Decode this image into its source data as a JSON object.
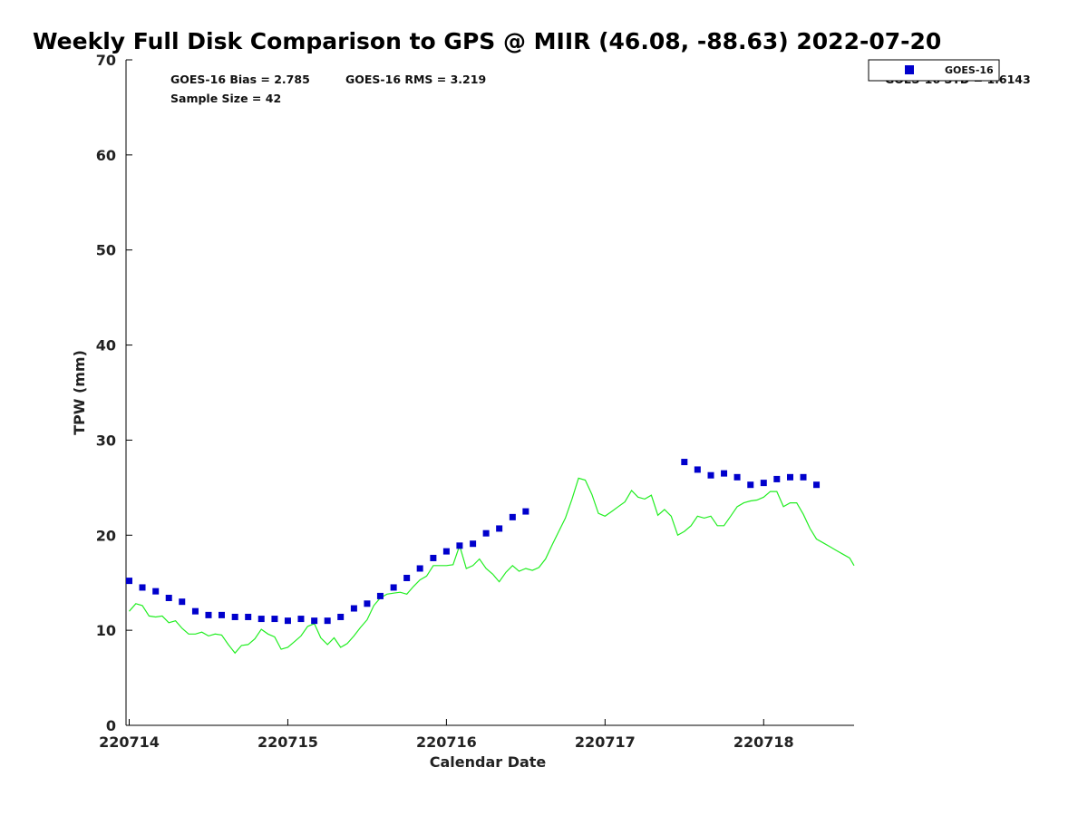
{
  "chart_data": {
    "type": "scatter",
    "title": "Weekly Full Disk Comparison to GPS @ MIIR (46.08, -88.63) 2022-07-20",
    "xlabel": "Calendar Date",
    "ylabel": "TPW (mm)",
    "xlim": [
      -0.02,
      4.57
    ],
    "ylim": [
      0,
      70
    ],
    "yticks": [
      0,
      10,
      20,
      30,
      40,
      50,
      60,
      70
    ],
    "xticks": [
      0,
      1,
      2,
      3,
      4
    ],
    "xtick_labels": [
      "220714",
      "220715",
      "220716",
      "220717",
      "220718"
    ],
    "stats": {
      "bias": "GOES-16 Bias = 2.785",
      "rms": "GOES-16 RMS = 3.219",
      "sample_size": "Sample Size = 42",
      "std": "GOES-16 STD = 1.6143"
    },
    "legend": {
      "position": "top-right",
      "label": "GOES-16"
    },
    "series": [
      {
        "name": "GOES-16",
        "kind": "scatter",
        "color": "#0000cc",
        "x": [
          0.0,
          0.083,
          0.167,
          0.25,
          0.333,
          0.417,
          0.5,
          0.583,
          0.667,
          0.75,
          0.833,
          0.917,
          1.0,
          1.083,
          1.167,
          1.25,
          1.333,
          1.417,
          1.5,
          1.583,
          1.667,
          1.75,
          1.833,
          1.917,
          2.0,
          2.083,
          2.167,
          2.25,
          2.333,
          2.417,
          2.5,
          3.5,
          3.583,
          3.667,
          3.75,
          3.833,
          3.917,
          4.0,
          4.083,
          4.167,
          4.25,
          4.333
        ],
        "y": [
          15.2,
          14.5,
          14.1,
          13.4,
          13.0,
          12.0,
          11.6,
          11.6,
          11.4,
          11.4,
          11.2,
          11.2,
          11.0,
          11.2,
          11.0,
          11.0,
          11.4,
          12.3,
          12.8,
          13.6,
          14.5,
          15.5,
          16.5,
          17.6,
          18.3,
          18.9,
          19.1,
          20.2,
          20.7,
          21.9,
          22.5,
          27.7,
          26.9,
          26.3,
          26.5,
          26.1,
          25.3,
          25.5,
          25.9,
          26.1,
          26.1,
          25.3
        ]
      },
      {
        "name": "GPS",
        "kind": "line",
        "color": "#22ee22",
        "x": [
          0.0,
          0.042,
          0.083,
          0.125,
          0.167,
          0.208,
          0.25,
          0.292,
          0.333,
          0.375,
          0.417,
          0.458,
          0.5,
          0.542,
          0.583,
          0.625,
          0.667,
          0.708,
          0.75,
          0.792,
          0.833,
          0.875,
          0.917,
          0.958,
          1.0,
          1.042,
          1.083,
          1.125,
          1.167,
          1.208,
          1.25,
          1.292,
          1.333,
          1.375,
          1.417,
          1.458,
          1.5,
          1.542,
          1.583,
          1.625,
          1.667,
          1.708,
          1.75,
          1.792,
          1.833,
          1.875,
          1.917,
          1.958,
          2.0,
          2.042,
          2.083,
          2.125,
          2.167,
          2.208,
          2.25,
          2.292,
          2.333,
          2.375,
          2.417,
          2.458,
          2.5,
          2.542,
          2.583,
          2.625,
          2.667,
          2.708,
          2.75,
          2.792,
          2.833,
          2.875,
          2.917,
          2.958,
          3.0,
          3.042,
          3.083,
          3.125,
          3.167,
          3.208,
          3.25,
          3.292,
          3.333,
          3.375,
          3.417,
          3.458,
          3.5,
          3.542,
          3.583,
          3.625,
          3.667,
          3.708,
          3.75,
          3.792,
          3.833,
          3.875,
          3.917,
          3.958,
          4.0,
          4.042,
          4.083,
          4.125,
          4.167,
          4.208,
          4.25,
          4.292,
          4.333,
          4.375,
          4.417,
          4.458,
          4.5,
          4.542,
          4.57
        ],
        "y": [
          12.0,
          12.8,
          12.6,
          11.5,
          11.4,
          11.5,
          10.8,
          11.0,
          10.2,
          9.6,
          9.6,
          9.8,
          9.4,
          9.6,
          9.5,
          8.5,
          7.6,
          8.4,
          8.5,
          9.1,
          10.1,
          9.6,
          9.3,
          8.0,
          8.2,
          8.8,
          9.4,
          10.4,
          10.7,
          9.2,
          8.5,
          9.2,
          8.2,
          8.6,
          9.4,
          10.3,
          11.1,
          12.6,
          13.4,
          13.8,
          13.9,
          14.0,
          13.8,
          14.6,
          15.3,
          15.7,
          16.8,
          16.8,
          16.8,
          16.9,
          18.9,
          16.5,
          16.8,
          17.5,
          16.5,
          15.9,
          15.1,
          16.1,
          16.8,
          16.2,
          16.5,
          16.3,
          16.6,
          17.5,
          19.0,
          20.4,
          21.8,
          23.8,
          26.0,
          25.8,
          24.3,
          22.3,
          22.0,
          22.5,
          23.0,
          23.5,
          24.7,
          24.0,
          23.8,
          24.2,
          22.1,
          22.7,
          22.0,
          20.0,
          20.4,
          21.0,
          22.0,
          21.8,
          22.0,
          21.0,
          21.0,
          22.0,
          23.0,
          23.4,
          23.6,
          23.7,
          24.0,
          24.6,
          24.6,
          23.0,
          23.4,
          23.4,
          22.2,
          20.7,
          19.6,
          19.2,
          18.8,
          18.4,
          18.0,
          17.6,
          16.8
        ]
      }
    ]
  }
}
